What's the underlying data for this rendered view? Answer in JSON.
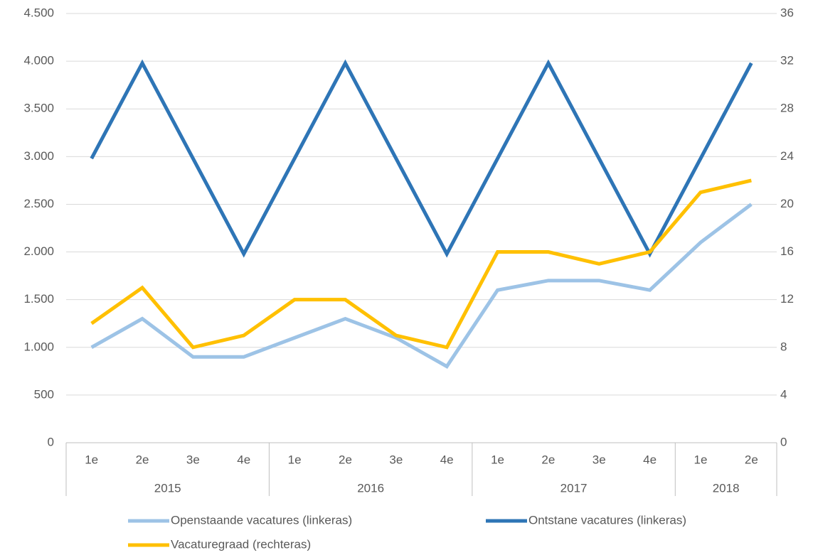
{
  "chart_data": {
    "type": "line",
    "categories": [
      "1e",
      "2e",
      "3e",
      "4e",
      "1e",
      "2e",
      "3e",
      "4e",
      "1e",
      "2e",
      "3e",
      "4e",
      "1e",
      "2e"
    ],
    "year_groups": [
      {
        "label": "2015",
        "count": 4
      },
      {
        "label": "2016",
        "count": 4
      },
      {
        "label": "2017",
        "count": 4
      },
      {
        "label": "2018",
        "count": 2
      }
    ],
    "series": [
      {
        "name": "Openstaande vacatures (linkeras)",
        "color": "#9dc3e6",
        "values": [
          1000,
          1300,
          900,
          900,
          1100,
          1300,
          1100,
          800,
          1600,
          1700,
          1700,
          1600,
          2100,
          2500
        ]
      },
      {
        "name": "Ontstane vacatures (linkeras)",
        "color": "#2e75b6",
        "values": [
          2980,
          3980,
          2980,
          1980,
          2980,
          3980,
          2980,
          1980,
          2980,
          3980,
          2980,
          1980,
          2980,
          3980
        ]
      },
      {
        "name": "Vacaturegraad (rechteras)",
        "color": "#ffc000",
        "axis": "y2",
        "values": [
          10,
          13,
          8,
          9,
          12,
          12,
          9,
          8,
          16,
          16,
          15,
          16,
          21,
          22
        ]
      }
    ],
    "ylim": [
      0,
      4500
    ],
    "yticks": [
      0,
      {
        "value": 500,
        "label": "500"
      },
      {
        "value": 1000,
        "label": "1.000"
      },
      {
        "value": 1500,
        "label": "1.500"
      },
      {
        "value": 2000,
        "label": "2.000"
      },
      {
        "value": 2500,
        "label": "2.500"
      },
      {
        "value": 3000,
        "label": "3.000"
      },
      {
        "value": 3500,
        "label": "3.500"
      },
      {
        "value": 4000,
        "label": "4.000"
      },
      {
        "value": 4500,
        "label": "4.500"
      }
    ],
    "y2lim": [
      0,
      36
    ],
    "y2ticks": [
      0,
      4,
      8,
      12,
      16,
      20,
      24,
      28,
      32,
      36
    ],
    "grid": true
  }
}
